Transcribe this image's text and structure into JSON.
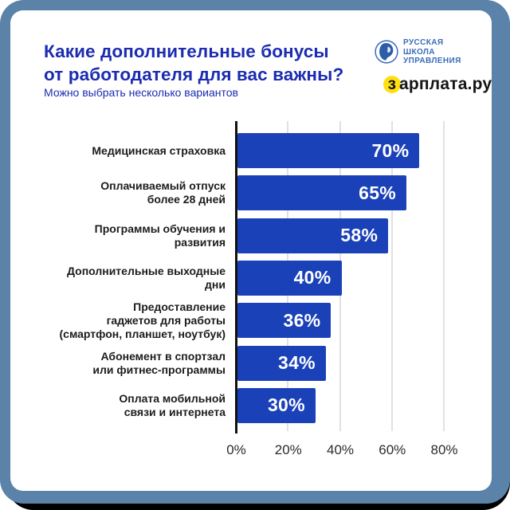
{
  "header": {
    "title_line1": "Какие дополнительные бонусы",
    "title_line2": "от работодателя для вас важны?",
    "subtitle": "Можно выбрать несколько вариантов"
  },
  "logos": {
    "rsu": {
      "line1": "РУССКАЯ",
      "line2": "ШКОЛА",
      "line3": "УПРАВЛЕНИЯ"
    },
    "zarplata": {
      "prefix": "з",
      "rest": "арплата.ру",
      "accent_color": "#ffdf12"
    }
  },
  "colors": {
    "frame": "#5b82a8",
    "card": "#ffffff",
    "title": "#1b2cb0",
    "bar": "#1b41b9",
    "bar_value_text": "#ffffff",
    "category_text": "#1c1c1c",
    "axis": "#111111",
    "gridline": "#e1e1e1"
  },
  "chart_data": {
    "type": "bar",
    "orientation": "horizontal",
    "title": "Какие дополнительные бонусы от работодателя для вас важны?",
    "subtitle": "Можно выбрать несколько вариантов",
    "categories": [
      "Медицинская страховка",
      "Оплачиваемый отпуск более 28 дней",
      "Программы обучения и развития",
      "Дополнительные выходные дни",
      "Предоставление гаджетов для работы (смартфон, планшет, ноутбук)",
      "Абонемент в спортзал или фитнес-программы",
      "Оплата мобильной связи и интернета"
    ],
    "category_lines": [
      [
        "Медицинская страховка"
      ],
      [
        "Оплачиваемый отпуск",
        "более 28 дней"
      ],
      [
        "Программы обучения и развития"
      ],
      [
        "Дополнительные выходные дни"
      ],
      [
        "Предоставление",
        "гаджетов для работы",
        "(смартфон, планшет, ноутбук)"
      ],
      [
        "Абонемент в спортзал",
        "или фитнес-программы"
      ],
      [
        "Оплата мобильной",
        "связи и интернета"
      ]
    ],
    "values": [
      70,
      65,
      58,
      40,
      36,
      34,
      30
    ],
    "value_labels": [
      "70%",
      "65%",
      "58%",
      "40%",
      "36%",
      "34%",
      "30%"
    ],
    "x_ticks": [
      "0%",
      "20%",
      "40%",
      "60%",
      "80%"
    ],
    "x_tick_values": [
      0,
      20,
      40,
      60,
      80
    ],
    "xlim": [
      0,
      80
    ],
    "grid": "vertical",
    "legend": "none",
    "bar_color": "#1b41b9"
  }
}
